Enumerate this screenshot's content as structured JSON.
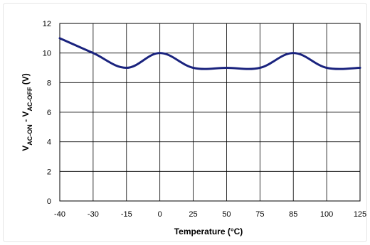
{
  "chart_data": {
    "type": "line",
    "title": "",
    "xlabel": "Temperature (°C)",
    "ylabel": {
      "prefix1": "V",
      "sub1": "AC-ON",
      "sep": " - ",
      "prefix2": "V",
      "sub2": "AC-OFF",
      "unit": " (V)"
    },
    "x_ticks": [
      "-40",
      "-30",
      "-15",
      "0",
      "25",
      "50",
      "75",
      "85",
      "100",
      "125"
    ],
    "y_ticks": [
      0,
      2,
      4,
      6,
      8,
      10,
      12
    ],
    "ylim": [
      0,
      12
    ],
    "grid": true,
    "series": [
      {
        "points": [
          {
            "x": "-40",
            "y": 11.0
          },
          {
            "x": "-30",
            "y": 10.0
          },
          {
            "x": "-15",
            "y": 9.0
          },
          {
            "x": "0",
            "y": 10.0
          },
          {
            "x": "25",
            "y": 9.0
          },
          {
            "x": "50",
            "y": 9.0
          },
          {
            "x": "75",
            "y": 9.0
          },
          {
            "x": "85",
            "y": 10.0
          },
          {
            "x": "100",
            "y": 9.0
          },
          {
            "x": "125",
            "y": 9.0
          }
        ]
      }
    ],
    "colors": {
      "line": "#1a237e",
      "grid": "#000000",
      "axis": "#000000"
    }
  }
}
